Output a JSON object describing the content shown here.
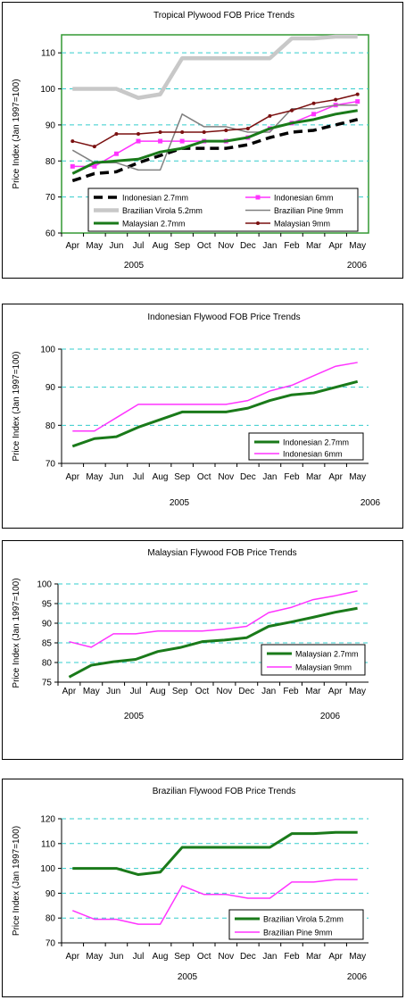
{
  "colors": {
    "indonesian_27": "#1a7a1a",
    "indonesian_6": "#ff33ff",
    "virola": "#c8c8c8",
    "pine": "#808080",
    "malaysian_27": "#1a7a1a",
    "malaysian_9": "#7a1010",
    "grid": "#33cccc",
    "plot_border": "#339933",
    "black": "#000000"
  },
  "chart_data": [
    {
      "type": "line",
      "title": "Tropical Plywood FOB Price Trends",
      "ylabel": "Price Index (Jan 1997=100)",
      "categories": [
        "Apr",
        "May",
        "Jun",
        "Jul",
        "Aug",
        "Sep",
        "Oct",
        "Nov",
        "Dec",
        "Jan",
        "Feb",
        "Mar",
        "Apr",
        "May"
      ],
      "years": [
        "2005",
        "2006"
      ],
      "ylim": [
        60,
        115
      ],
      "yticks": [
        60,
        70,
        80,
        90,
        100,
        110
      ],
      "grid": true,
      "legend": "bottom-center",
      "series": [
        {
          "name": "Indonesian 2.7mm",
          "style": "dashed",
          "color_key": "black",
          "values": [
            74.5,
            76.5,
            77,
            79.5,
            81.5,
            83.5,
            83.5,
            83.5,
            84.5,
            86.5,
            88,
            88.5,
            90,
            91.5
          ]
        },
        {
          "name": "Indonesian 6mm",
          "style": "square-marker",
          "color_key": "indonesian_6",
          "values": [
            78.5,
            78.5,
            82,
            85.5,
            85.5,
            85.5,
            85.5,
            85.5,
            86.5,
            89,
            90.5,
            93,
            95.5,
            96.5
          ]
        },
        {
          "name": "Brazilian Virola 5.2mm",
          "style": "thick",
          "color_key": "virola",
          "values": [
            100,
            100,
            100,
            97.5,
            98.5,
            108.5,
            108.5,
            108.5,
            108.5,
            108.5,
            114,
            114,
            114.5,
            114.5
          ]
        },
        {
          "name": "Brazilian Pine 9mm",
          "style": "solid",
          "color_key": "pine",
          "values": [
            83,
            79.5,
            79.5,
            77.5,
            77.5,
            93,
            89.5,
            89.5,
            88,
            88,
            94.5,
            94.5,
            95.5,
            95.5
          ]
        },
        {
          "name": "Malaysian 2.7mm",
          "style": "thick",
          "color_key": "malaysian_27",
          "values": [
            76.5,
            79.5,
            80,
            80.5,
            82.5,
            83.5,
            85.5,
            85.5,
            86.5,
            89,
            90.5,
            91.5,
            93,
            94
          ]
        },
        {
          "name": "Malaysian 9mm",
          "style": "dot-marker",
          "color_key": "malaysian_9",
          "values": [
            85.5,
            84,
            87.5,
            87.5,
            88,
            88,
            88,
            88.5,
            89,
            92.5,
            94,
            96,
            97,
            98.5
          ]
        }
      ]
    },
    {
      "type": "line",
      "title": "Indonesian Flywood FOB Price Trends",
      "ylabel": "Price Index (Jan 1997=100)",
      "categories": [
        "Apr",
        "May",
        "Jun",
        "Jul",
        "Aug",
        "Sep",
        "Oct",
        "Nov",
        "Dec",
        "Jan",
        "Feb",
        "Mar",
        "Apr",
        "May"
      ],
      "years": [
        "2005",
        "2006"
      ],
      "ylim": [
        70,
        100
      ],
      "yticks": [
        70,
        80,
        90,
        100
      ],
      "grid": true,
      "legend": "bottom-right",
      "series": [
        {
          "name": "Indonesian 2.7mm",
          "style": "thick",
          "color_key": "indonesian_27",
          "values": [
            74.5,
            76.5,
            77,
            79.5,
            81.5,
            83.5,
            83.5,
            83.5,
            84.5,
            86.5,
            88,
            88.5,
            90,
            91.5
          ]
        },
        {
          "name": "Indonesian 6mm",
          "style": "solid",
          "color_key": "indonesian_6",
          "values": [
            78.5,
            78.5,
            82,
            85.5,
            85.5,
            85.5,
            85.5,
            85.5,
            86.5,
            89,
            90.5,
            93,
            95.5,
            96.5
          ]
        }
      ]
    },
    {
      "type": "line",
      "title": "Malaysian Flywood FOB Price Trends",
      "ylabel": "Price Index (Jan 1997=100)",
      "categories": [
        "Apr",
        "May",
        "Jun",
        "Jul",
        "Aug",
        "Sep",
        "Oct",
        "Nov",
        "Dec",
        "Jan",
        "Feb",
        "Mar",
        "Apr",
        "May"
      ],
      "years": [
        "2005",
        "2006"
      ],
      "ylim": [
        75,
        100
      ],
      "yticks": [
        75,
        80,
        85,
        90,
        95,
        100
      ],
      "grid": true,
      "legend": "bottom-right",
      "series": [
        {
          "name": "Malaysian 2.7mm",
          "style": "thick",
          "color_key": "malaysian_27",
          "values": [
            76.3,
            79.3,
            80.2,
            80.8,
            82.8,
            83.8,
            85.3,
            85.7,
            86.3,
            89.2,
            90.3,
            91.5,
            92.8,
            93.8
          ]
        },
        {
          "name": "Malaysian 9mm",
          "style": "solid",
          "color_key": "indonesian_6",
          "values": [
            85.3,
            83.9,
            87.3,
            87.3,
            88,
            88,
            88,
            88.5,
            89.2,
            92.7,
            94,
            96,
            97,
            98.2
          ]
        }
      ]
    },
    {
      "type": "line",
      "title": "Brazilian Flywood FOB Price Trends",
      "ylabel": "Price Index (Jan 1997=100)",
      "categories": [
        "Apr",
        "May",
        "Jun",
        "Jul",
        "Aug",
        "Sep",
        "Oct",
        "Nov",
        "Dec",
        "Jan",
        "Feb",
        "Mar",
        "Apr",
        "May"
      ],
      "years": [
        "2005",
        "2006"
      ],
      "ylim": [
        70,
        120
      ],
      "yticks": [
        70,
        80,
        90,
        100,
        110,
        120
      ],
      "grid": true,
      "legend": "bottom-right",
      "series": [
        {
          "name": "Brazilian Virola 5.2mm",
          "style": "thick",
          "color_key": "indonesian_27",
          "values": [
            100,
            100,
            100,
            97.5,
            98.5,
            108.5,
            108.5,
            108.5,
            108.5,
            108.5,
            114,
            114,
            114.5,
            114.5
          ]
        },
        {
          "name": "Brazilian Pine 9mm",
          "style": "solid",
          "color_key": "indonesian_6",
          "values": [
            83,
            79.5,
            79.5,
            77.5,
            77.5,
            93,
            89.5,
            89.5,
            88,
            88,
            94.5,
            94.5,
            95.5,
            95.5
          ]
        }
      ]
    }
  ]
}
